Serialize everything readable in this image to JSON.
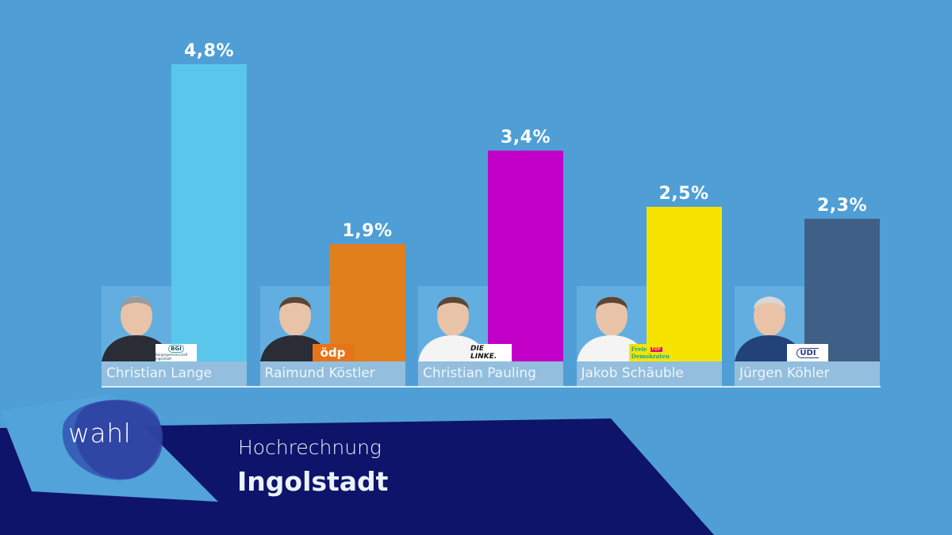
{
  "header": {
    "subtitle": "Hochrechnung",
    "title": "Ingolstadt",
    "logo_text": "wahl"
  },
  "colors": {
    "background": "#4f9fd6",
    "banner": "#0e146a",
    "photo_box": "#63aee0",
    "name_box": "#93bede"
  },
  "chart_data": {
    "type": "bar",
    "title": "Hochrechnung Ingolstadt",
    "xlabel": "",
    "ylabel": "",
    "ylim": [
      0,
      4.8
    ],
    "grid": false,
    "legend": "none",
    "categories": [
      "Christian Lange",
      "Raimund Köstler",
      "Christian Pauling",
      "Jakob Schäuble",
      "Jürgen Köhler"
    ],
    "values": [
      4.8,
      1.9,
      3.4,
      2.5,
      2.3
    ],
    "value_labels": [
      "4,8%",
      "1,9%",
      "3,4%",
      "2,5%",
      "2,3%"
    ],
    "parties": [
      "Bürgergemeinschaft Ingolstadt",
      "ödp",
      "DIE LINKE.",
      "Freie Demokraten FDP",
      "UDI"
    ],
    "colors": [
      "#5ac6ec",
      "#e17f1d",
      "#c300c8",
      "#f6e400",
      "#3f5f87"
    ]
  },
  "candidates": [
    {
      "name": "Christian Lange",
      "value_label": "4,8%",
      "party_logo": "BGI",
      "party_logo_sub": "Bürgergemeinschaft Ingolstadt"
    },
    {
      "name": "Raimund Köstler",
      "value_label": "1,9%",
      "party_logo": "ödp"
    },
    {
      "name": "Christian Pauling",
      "value_label": "3,4%",
      "party_logo": "DIE LINKE."
    },
    {
      "name": "Jakob Schäuble",
      "value_label": "2,5%",
      "party_logo": "Freie",
      "party_logo_sub": "Demokraten",
      "party_logo_tag": "FDP"
    },
    {
      "name": "Jürgen Köhler",
      "value_label": "2,3%",
      "party_logo": "UDI"
    }
  ]
}
